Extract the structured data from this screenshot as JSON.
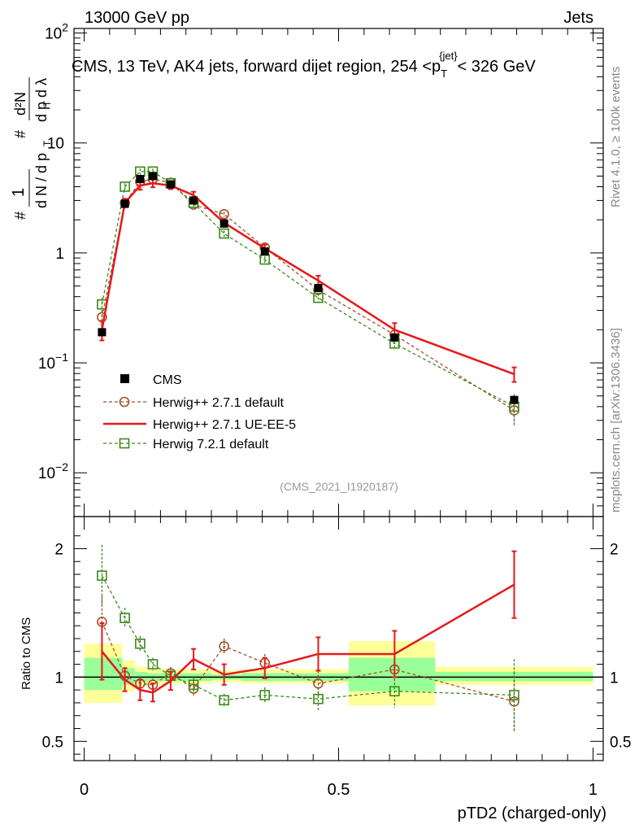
{
  "header": {
    "left": "13000 GeV pp",
    "right": "Jets"
  },
  "side_labels": {
    "rivet": "Rivet 4.1.0, ≥ 100k events",
    "mcplots": "mcplots.cern.ch [arXiv:1306.3436]"
  },
  "main_title": "CMS, 13 TeV, AK4 jets, forward dijet region, 254 <p",
  "main_title_sub": "T",
  "main_title_sup": "{jet}",
  "main_title_tail": "< 326 GeV",
  "watermark": "(CMS_2021_I1920187)",
  "y_label_main": "1/N dN/dpTdλ (ROOT style)",
  "colors": {
    "cms": "#000000",
    "herwig_default": "#a0522d",
    "herwig_ue": "#e41a1c",
    "herwig72": "#3a8a1a",
    "band_yellow": "#ffff99",
    "band_green": "#99ff99"
  },
  "chart_data": [
    {
      "type": "scatter",
      "panel": "main",
      "title": "CMS, 13 TeV, AK4 jets, forward dijet region, 254 <pT{jet}< 326 GeV",
      "xlabel": "pTD2 (charged-only)",
      "ylabel": "1/N dN/dλ",
      "yscale": "log",
      "xlim": [
        -0.02,
        1.02
      ],
      "ylim": [
        0.004,
        110
      ],
      "ytick_labels": [
        "10^-2",
        "10^-1",
        "1",
        "10",
        "10^2"
      ],
      "ytick_values": [
        0.01,
        0.1,
        1,
        10,
        100
      ],
      "legend_position": "lower-left",
      "bins": [
        {
          "lo": 0.0,
          "hi": 0.075
        },
        {
          "lo": 0.075,
          "hi": 0.1
        },
        {
          "lo": 0.1,
          "hi": 0.125
        },
        {
          "lo": 0.125,
          "hi": 0.16
        },
        {
          "lo": 0.16,
          "hi": 0.19
        },
        {
          "lo": 0.19,
          "hi": 0.25
        },
        {
          "lo": 0.25,
          "hi": 0.31
        },
        {
          "lo": 0.31,
          "hi": 0.4
        },
        {
          "lo": 0.4,
          "hi": 0.52
        },
        {
          "lo": 0.52,
          "hi": 0.69
        },
        {
          "lo": 0.69,
          "hi": 1.0
        }
      ],
      "series": [
        {
          "name": "CMS",
          "style": "square-filled",
          "x": [
            0.035,
            0.08,
            0.11,
            0.135,
            0.17,
            0.215,
            0.275,
            0.355,
            0.46,
            0.61,
            0.845
          ],
          "y": [
            0.19,
            2.8,
            4.7,
            5.0,
            4.2,
            3.0,
            1.85,
            1.03,
            0.48,
            0.17,
            0.046
          ],
          "err": [
            0.01,
            0.15,
            0.2,
            0.2,
            0.15,
            0.1,
            0.08,
            0.04,
            0.02,
            0.01,
            0.004
          ]
        },
        {
          "name": "Herwig++ 2.7.1 default",
          "style": "circle-open-dashed",
          "x": [
            0.035,
            0.08,
            0.11,
            0.135,
            0.17,
            0.215,
            0.275,
            0.355,
            0.46,
            0.61,
            0.845
          ],
          "y": [
            0.26,
            2.85,
            4.45,
            4.7,
            4.35,
            2.75,
            2.25,
            1.12,
            0.46,
            0.18,
            0.037
          ],
          "err": [
            0.04,
            0.2,
            0.25,
            0.25,
            0.2,
            0.15,
            0.12,
            0.08,
            0.05,
            0.03,
            0.01
          ]
        },
        {
          "name": "Herwig++ 2.7.1 UE-EE-5",
          "style": "line-solid",
          "x": [
            0.035,
            0.08,
            0.11,
            0.135,
            0.17,
            0.215,
            0.275,
            0.355,
            0.46,
            0.61,
            0.845
          ],
          "y": [
            0.2,
            2.85,
            4.1,
            4.3,
            4.1,
            3.35,
            1.88,
            1.1,
            0.56,
            0.2,
            0.079
          ],
          "err": [
            0.04,
            0.25,
            0.35,
            0.35,
            0.3,
            0.25,
            0.15,
            0.09,
            0.06,
            0.03,
            0.012
          ]
        },
        {
          "name": "Herwig 7.2.1 default",
          "style": "square-open-dashed",
          "x": [
            0.035,
            0.08,
            0.11,
            0.135,
            0.17,
            0.215,
            0.275,
            0.355,
            0.46,
            0.61,
            0.845
          ],
          "y": [
            0.34,
            4.0,
            5.5,
            5.5,
            4.3,
            2.85,
            1.5,
            0.87,
            0.39,
            0.15,
            0.04
          ],
          "err": [
            0.05,
            0.3,
            0.35,
            0.35,
            0.3,
            0.2,
            0.1,
            0.06,
            0.04,
            0.02,
            0.012
          ]
        }
      ]
    },
    {
      "type": "scatter",
      "panel": "ratio",
      "xlabel": "pTD2 (charged-only)",
      "ylabel": "Ratio to CMS",
      "xlim": [
        -0.02,
        1.02
      ],
      "ylim": [
        0.35,
        2.25
      ],
      "ytick_labels": [
        "0.5",
        "1",
        "2"
      ],
      "ytick_values": [
        0.5,
        1,
        2
      ],
      "xtick_labels": [
        "0",
        "0.5",
        "1"
      ],
      "xtick_values": [
        0,
        0.5,
        1
      ],
      "band_yellow": [
        [
          0.8,
          1.26
        ],
        [
          0.89,
          1.13
        ],
        [
          0.93,
          1.08
        ],
        [
          0.94,
          1.07
        ],
        [
          0.95,
          1.06
        ],
        [
          0.95,
          1.06
        ],
        [
          0.96,
          1.05
        ],
        [
          0.95,
          1.06
        ],
        [
          0.95,
          1.06
        ],
        [
          0.78,
          1.28
        ],
        [
          0.94,
          1.08
        ]
      ],
      "band_green": [
        [
          0.9,
          1.15
        ],
        [
          0.94,
          1.07
        ],
        [
          0.96,
          1.04
        ],
        [
          0.97,
          1.03
        ],
        [
          0.97,
          1.03
        ],
        [
          0.97,
          1.03
        ],
        [
          0.98,
          1.02
        ],
        [
          0.97,
          1.03
        ],
        [
          0.97,
          1.03
        ],
        [
          0.89,
          1.15
        ],
        [
          0.97,
          1.04
        ]
      ],
      "series": [
        {
          "name": "Herwig++ 2.7.1 default",
          "style": "circle-open-dashed",
          "x": [
            0.035,
            0.08,
            0.11,
            0.135,
            0.17,
            0.215,
            0.275,
            0.355,
            0.46,
            0.61,
            0.845
          ],
          "y": [
            1.43,
            1.01,
            0.95,
            0.94,
            1.03,
            0.91,
            1.24,
            1.11,
            0.95,
            1.06,
            0.81
          ],
          "err": [
            0.2,
            0.07,
            0.05,
            0.05,
            0.05,
            0.06,
            0.06,
            0.07,
            0.1,
            0.15,
            0.23
          ]
        },
        {
          "name": "Herwig++ 2.7.1 UE-EE-5",
          "style": "line-solid",
          "x": [
            0.035,
            0.08,
            0.11,
            0.135,
            0.17,
            0.215,
            0.275,
            0.355,
            0.46,
            0.61,
            0.845
          ],
          "y": [
            1.2,
            0.98,
            0.9,
            0.88,
            0.97,
            1.14,
            1.02,
            1.07,
            1.18,
            1.18,
            1.72
          ],
          "err": [
            0.22,
            0.09,
            0.08,
            0.07,
            0.07,
            0.08,
            0.08,
            0.08,
            0.13,
            0.18,
            0.26
          ]
        },
        {
          "name": "Herwig 7.2.1 default",
          "style": "square-open-dashed",
          "x": [
            0.035,
            0.08,
            0.11,
            0.135,
            0.17,
            0.215,
            0.275,
            0.355,
            0.46,
            0.61,
            0.845
          ],
          "y": [
            1.79,
            1.46,
            1.26,
            1.1,
            1.01,
            0.94,
            0.82,
            0.86,
            0.83,
            0.89,
            0.86
          ],
          "err": [
            0.24,
            0.08,
            0.06,
            0.05,
            0.06,
            0.06,
            0.05,
            0.06,
            0.09,
            0.13,
            0.28
          ]
        }
      ]
    }
  ]
}
